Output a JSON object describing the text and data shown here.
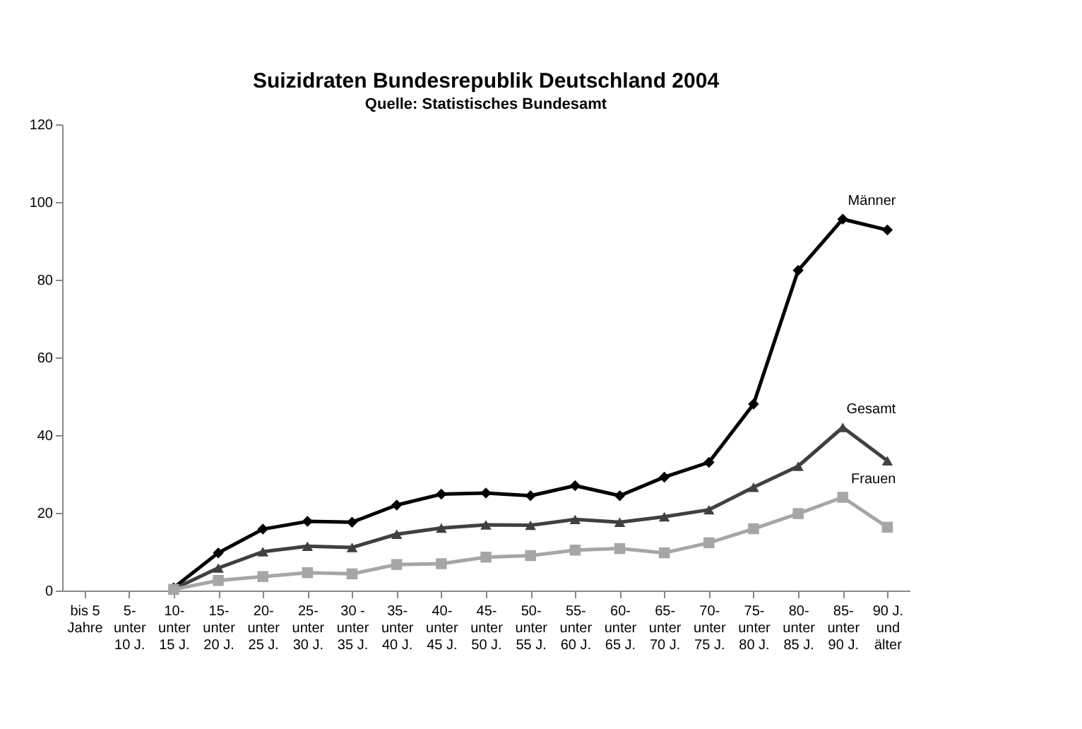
{
  "chart_data": {
    "type": "line",
    "title": "Suizidraten Bundesrepublik Deutschland 2004",
    "subtitle": "Quelle: Statistisches Bundesamt",
    "categories": [
      "bis 5\nJahre",
      "5-\nunter\n10 J.",
      "10-\nunter\n15 J.",
      "15-\nunter\n20 J.",
      "20-\nunter\n25 J.",
      "25-\nunter\n30 J.",
      "30 -\nunter\n35 J.",
      "35-\nunter\n40 J.",
      "40-\nunter\n45 J.",
      "45-\nunter\n50 J.",
      "50-\nunter\n55 J.",
      "55-\nunter\n60 J.",
      "60-\nunter\n65 J.",
      "65-\nunter\n70 J.",
      "70-\nunter\n75 J.",
      "75-\nunter\n80 J.",
      "80-\nunter\n85 J.",
      "85-\nunter\n90 J.",
      "90 J.\nund\nälter"
    ],
    "series": [
      {
        "name": "Männer",
        "color": "#000000",
        "marker": "diamond",
        "values": [
          null,
          null,
          0.7,
          9.7,
          15.8,
          17.8,
          17.6,
          22,
          24.8,
          25.1,
          24.4,
          27,
          24.4,
          29.2,
          33,
          48,
          82.4,
          95.6,
          92.8
        ]
      },
      {
        "name": "Gesamt",
        "color": "#404040",
        "marker": "triangle",
        "values": [
          null,
          null,
          0.4,
          5.8,
          10,
          11.4,
          11.1,
          14.5,
          16.1,
          16.9,
          16.8,
          18.3,
          17.6,
          19,
          20.8,
          26.6,
          32,
          42,
          33.4
        ]
      },
      {
        "name": "Frauen",
        "color": "#a6a6a6",
        "marker": "square",
        "values": [
          null,
          null,
          0.3,
          2.6,
          3.6,
          4.6,
          4.3,
          6.7,
          6.9,
          8.6,
          9,
          10.4,
          10.8,
          9.7,
          12.3,
          15.9,
          19.8,
          24,
          16.3
        ]
      }
    ],
    "ylim": [
      0,
      120
    ],
    "yticks": [
      0,
      20,
      40,
      60,
      80,
      100,
      120
    ],
    "grid": false,
    "legend": false,
    "line_style": "solid"
  }
}
